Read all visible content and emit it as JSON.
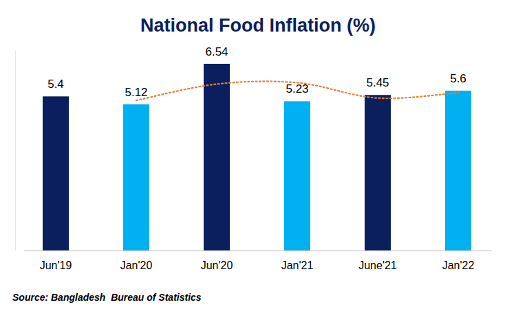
{
  "chart_data": {
    "type": "bar",
    "title": "National Food Inflation (%)",
    "categories": [
      "Jun'19",
      "Jan'20",
      "Jun'20",
      "Jan'21",
      "June'21",
      "Jan'22"
    ],
    "series": [
      {
        "type": "bar",
        "colors": [
          "#0B1F5E",
          "#00B0F0",
          "#0B1F5E",
          "#00B0F0",
          "#0B1F5E",
          "#00B0F0"
        ],
        "values": [
          5.4,
          5.12,
          6.54,
          5.23,
          5.45,
          5.6
        ]
      },
      {
        "type": "line",
        "color": "#ED7D31",
        "line_style": "dotted",
        "values": [
          null,
          5.26,
          5.83,
          5.88,
          5.34,
          5.53
        ]
      }
    ],
    "ylim": [
      0,
      7
    ],
    "tick_labels": "x",
    "data_labels": true,
    "grid": false,
    "source": "Source: Bangladesh  Bureau of Statistics"
  }
}
